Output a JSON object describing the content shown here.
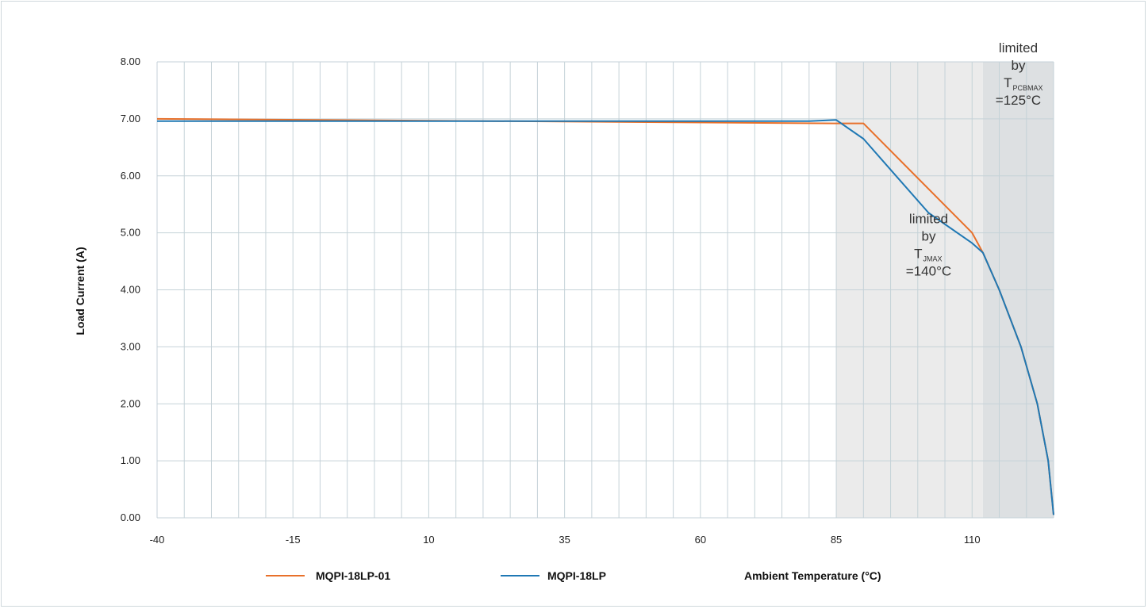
{
  "chart_data": {
    "type": "line",
    "xlabel": "Ambient Temperature (°C)",
    "ylabel": "Load Current (A)",
    "xlim": [
      -40,
      125
    ],
    "ylim": [
      0,
      8
    ],
    "x_ticks": [
      "-40",
      "-15",
      "10",
      "35",
      "60",
      "85",
      "110"
    ],
    "y_ticks": [
      "0.00",
      "1.00",
      "2.00",
      "3.00",
      "4.00",
      "5.00",
      "6.00",
      "7.00",
      "8.00"
    ],
    "grid": true,
    "legend_position": "bottom",
    "shaded_regions": [
      {
        "x_range": [
          85,
          112
        ],
        "color": "#ebebeb"
      },
      {
        "x_range": [
          112,
          125
        ],
        "color": "#dde0e2"
      }
    ],
    "annotations": [
      {
        "lines": [
          "limited",
          "by"
        ],
        "symbol": "T",
        "subscript": "JMAX",
        "value": "=140°C",
        "x": 102,
        "y": 4.5
      },
      {
        "lines": [
          "limited",
          "by"
        ],
        "symbol": "T",
        "subscript": "PCBMAX",
        "value": "=125°C",
        "x": 118.5,
        "y": 7.5
      }
    ],
    "series": [
      {
        "name": "MQPI-18LP-01",
        "color": "#e8702a",
        "x": [
          -40,
          85,
          90,
          110,
          112,
          115,
          119,
          122,
          124,
          125
        ],
        "y": [
          7.0,
          6.92,
          6.92,
          5.0,
          4.65,
          4.0,
          3.0,
          2.0,
          1.0,
          0.05
        ]
      },
      {
        "name": "MQPI-18LP",
        "color": "#1f78b4",
        "x": [
          -40,
          80,
          85,
          90,
          96,
          102,
          110,
          112,
          115,
          119,
          122,
          124,
          125
        ],
        "y": [
          6.96,
          6.96,
          6.98,
          6.65,
          6.0,
          5.35,
          4.82,
          4.65,
          4.0,
          3.0,
          2.0,
          1.0,
          0.05
        ]
      }
    ]
  }
}
